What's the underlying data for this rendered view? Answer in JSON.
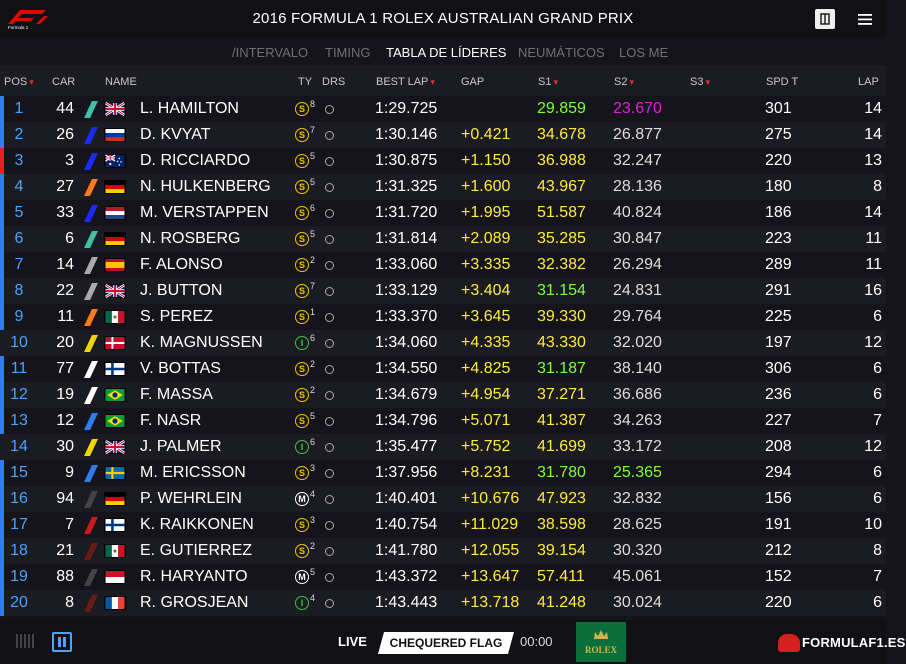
{
  "header": {
    "title": "2016 FORMULA 1 ROLEX AUSTRALIAN GRAND PRIX",
    "logo_text": "Formula 1"
  },
  "tabs": [
    {
      "label": "/INTERVALO",
      "active": false
    },
    {
      "label": "TIMING",
      "active": false
    },
    {
      "label": "TABLA DE LÍDERES",
      "active": true
    },
    {
      "label": "NEUMÁTICOS",
      "active": false
    },
    {
      "label": "LOS ME",
      "active": false
    }
  ],
  "columns": {
    "pos": "POS",
    "car": "CAR",
    "name": "NAME",
    "ty": "TY",
    "drs": "DRS",
    "best_lap": "BEST LAP",
    "gap": "GAP",
    "s1": "S1",
    "s2": "S2",
    "s3": "S3",
    "spd_t": "SPD T",
    "lap": "LAP"
  },
  "rows": [
    {
      "pos": "1",
      "car": "44",
      "team": "#3fc1a8",
      "flag": "gb",
      "name": "L. HAMILTON",
      "tyre": "S",
      "tyre_color": "#f2c400",
      "age": "8",
      "best": "1:29.725",
      "gap": "",
      "s1": "29.859",
      "s1_color": "#7dff3a",
      "s2": "23.670",
      "s2_color": "#e020e0",
      "spd": "301",
      "lap": "14",
      "stripe": "#2e7cf6"
    },
    {
      "pos": "2",
      "car": "26",
      "team": "#1a2bff",
      "flag": "ru",
      "name": "D. KVYAT",
      "tyre": "S",
      "tyre_color": "#f2c400",
      "age": "7",
      "best": "1:30.146",
      "gap": "+0.421",
      "s1": "34.678",
      "s1_color": "#ffeb3b",
      "s2": "26.877",
      "s2_color": "#dddddd",
      "spd": "275",
      "lap": "14",
      "stripe": "#2e7cf6"
    },
    {
      "pos": "3",
      "car": "3",
      "team": "#1a2bff",
      "flag": "au",
      "name": "D. RICCIARDO",
      "tyre": "S",
      "tyre_color": "#f2c400",
      "age": "5",
      "best": "1:30.875",
      "gap": "+1.150",
      "s1": "36.988",
      "s1_color": "#ffeb3b",
      "s2": "32.247",
      "s2_color": "#dddddd",
      "spd": "220",
      "lap": "13",
      "stripe": "#e62020"
    },
    {
      "pos": "4",
      "car": "27",
      "team": "#ff7a1a",
      "flag": "de",
      "name": "N. HULKENBERG",
      "tyre": "S",
      "tyre_color": "#f2c400",
      "age": "5",
      "best": "1:31.325",
      "gap": "+1.600",
      "s1": "43.967",
      "s1_color": "#ffeb3b",
      "s2": "28.136",
      "s2_color": "#dddddd",
      "spd": "180",
      "lap": "8",
      "stripe": "#2e7cf6"
    },
    {
      "pos": "5",
      "car": "33",
      "team": "#1a2bff",
      "flag": "nl",
      "name": "M. VERSTAPPEN",
      "tyre": "S",
      "tyre_color": "#f2c400",
      "age": "6",
      "best": "1:31.720",
      "gap": "+1.995",
      "s1": "51.587",
      "s1_color": "#ffeb3b",
      "s2": "40.824",
      "s2_color": "#dddddd",
      "spd": "186",
      "lap": "14",
      "stripe": "#2e7cf6"
    },
    {
      "pos": "6",
      "car": "6",
      "team": "#3fc1a8",
      "flag": "de",
      "name": "N. ROSBERG",
      "tyre": "S",
      "tyre_color": "#f2c400",
      "age": "5",
      "best": "1:31.814",
      "gap": "+2.089",
      "s1": "35.285",
      "s1_color": "#ffeb3b",
      "s2": "30.847",
      "s2_color": "#dddddd",
      "spd": "223",
      "lap": "11",
      "stripe": "#2e7cf6"
    },
    {
      "pos": "7",
      "car": "14",
      "team": "#aaaaaa",
      "flag": "es",
      "name": "F. ALONSO",
      "tyre": "S",
      "tyre_color": "#f2c400",
      "age": "2",
      "best": "1:33.060",
      "gap": "+3.335",
      "s1": "32.382",
      "s1_color": "#ffeb3b",
      "s2": "26.294",
      "s2_color": "#dddddd",
      "spd": "289",
      "lap": "11",
      "stripe": "#2e7cf6"
    },
    {
      "pos": "8",
      "car": "22",
      "team": "#aaaaaa",
      "flag": "gb",
      "name": "J. BUTTON",
      "tyre": "S",
      "tyre_color": "#f2c400",
      "age": "7",
      "best": "1:33.129",
      "gap": "+3.404",
      "s1": "31.154",
      "s1_color": "#7dff3a",
      "s2": "24.831",
      "s2_color": "#dddddd",
      "spd": "291",
      "lap": "16",
      "stripe": "#2e7cf6"
    },
    {
      "pos": "9",
      "car": "11",
      "team": "#ff7a1a",
      "flag": "mx",
      "name": "S. PEREZ",
      "tyre": "S",
      "tyre_color": "#f2c400",
      "age": "1",
      "best": "1:33.370",
      "gap": "+3.645",
      "s1": "39.330",
      "s1_color": "#ffeb3b",
      "s2": "29.764",
      "s2_color": "#dddddd",
      "spd": "225",
      "lap": "6",
      "stripe": "#2e7cf6"
    },
    {
      "pos": "10",
      "car": "20",
      "team": "#f2d600",
      "flag": "dk",
      "name": "K. MAGNUSSEN",
      "tyre": "I",
      "tyre_color": "#3fc440",
      "age": "6",
      "best": "1:34.060",
      "gap": "+4.335",
      "s1": "43.330",
      "s1_color": "#ffeb3b",
      "s2": "32.020",
      "s2_color": "#dddddd",
      "spd": "197",
      "lap": "12",
      "stripe": ""
    },
    {
      "pos": "11",
      "car": "77",
      "team": "#ffffff",
      "flag": "fi",
      "name": "V. BOTTAS",
      "tyre": "S",
      "tyre_color": "#f2c400",
      "age": "2",
      "best": "1:34.550",
      "gap": "+4.825",
      "s1": "31.187",
      "s1_color": "#7dff3a",
      "s2": "38.140",
      "s2_color": "#dddddd",
      "spd": "306",
      "lap": "6",
      "stripe": "#2e7cf6"
    },
    {
      "pos": "12",
      "car": "19",
      "team": "#ffffff",
      "flag": "br",
      "name": "F. MASSA",
      "tyre": "S",
      "tyre_color": "#f2c400",
      "age": "2",
      "best": "1:34.679",
      "gap": "+4.954",
      "s1": "37.271",
      "s1_color": "#ffeb3b",
      "s2": "36.686",
      "s2_color": "#dddddd",
      "spd": "236",
      "lap": "6",
      "stripe": "#2e7cf6"
    },
    {
      "pos": "13",
      "car": "12",
      "team": "#2e7cf6",
      "flag": "br",
      "name": "F. NASR",
      "tyre": "S",
      "tyre_color": "#f2c400",
      "age": "5",
      "best": "1:34.796",
      "gap": "+5.071",
      "s1": "41.387",
      "s1_color": "#ffeb3b",
      "s2": "34.263",
      "s2_color": "#dddddd",
      "spd": "227",
      "lap": "7",
      "stripe": "#2e7cf6"
    },
    {
      "pos": "14",
      "car": "30",
      "team": "#f2d600",
      "flag": "gb",
      "name": "J. PALMER",
      "tyre": "I",
      "tyre_color": "#3fc440",
      "age": "6",
      "best": "1:35.477",
      "gap": "+5.752",
      "s1": "41.699",
      "s1_color": "#ffeb3b",
      "s2": "33.172",
      "s2_color": "#dddddd",
      "spd": "208",
      "lap": "12",
      "stripe": ""
    },
    {
      "pos": "15",
      "car": "9",
      "team": "#2e7cf6",
      "flag": "se",
      "name": "M. ERICSSON",
      "tyre": "S",
      "tyre_color": "#f2c400",
      "age": "3",
      "best": "1:37.956",
      "gap": "+8.231",
      "s1": "31.780",
      "s1_color": "#7dff3a",
      "s2": "25.365",
      "s2_color": "#7dff3a",
      "spd": "294",
      "lap": "6",
      "stripe": "#2e7cf6"
    },
    {
      "pos": "16",
      "car": "94",
      "team": "#444444",
      "flag": "de",
      "name": "P. WEHRLEIN",
      "tyre": "M",
      "tyre_color": "#ffffff",
      "age": "4",
      "best": "1:40.401",
      "gap": "+10.676",
      "s1": "47.923",
      "s1_color": "#ffeb3b",
      "s2": "32.832",
      "s2_color": "#dddddd",
      "spd": "156",
      "lap": "6",
      "stripe": "#2e7cf6"
    },
    {
      "pos": "17",
      "car": "7",
      "team": "#cc1a1a",
      "flag": "fi",
      "name": "K. RAIKKONEN",
      "tyre": "S",
      "tyre_color": "#f2c400",
      "age": "3",
      "best": "1:40.754",
      "gap": "+11.029",
      "s1": "38.598",
      "s1_color": "#ffeb3b",
      "s2": "28.625",
      "s2_color": "#dddddd",
      "spd": "191",
      "lap": "10",
      "stripe": "#2e7cf6"
    },
    {
      "pos": "18",
      "car": "21",
      "team": "#6b1a1a",
      "flag": "mx",
      "name": "E. GUTIERREZ",
      "tyre": "S",
      "tyre_color": "#f2c400",
      "age": "2",
      "best": "1:41.780",
      "gap": "+12.055",
      "s1": "39.154",
      "s1_color": "#ffeb3b",
      "s2": "30.320",
      "s2_color": "#dddddd",
      "spd": "212",
      "lap": "8",
      "stripe": "#2e7cf6"
    },
    {
      "pos": "19",
      "car": "88",
      "team": "#444444",
      "flag": "id",
      "name": "R. HARYANTO",
      "tyre": "M",
      "tyre_color": "#ffffff",
      "age": "5",
      "best": "1:43.372",
      "gap": "+13.647",
      "s1": "57.411",
      "s1_color": "#ffeb3b",
      "s2": "45.061",
      "s2_color": "#dddddd",
      "spd": "152",
      "lap": "7",
      "stripe": "#2e7cf6"
    },
    {
      "pos": "20",
      "car": "8",
      "team": "#6b1a1a",
      "flag": "fr",
      "name": "R. GROSJEAN",
      "tyre": "I",
      "tyre_color": "#3fc440",
      "age": "4",
      "best": "1:43.443",
      "gap": "+13.718",
      "s1": "41.248",
      "s1_color": "#ffeb3b",
      "s2": "30.024",
      "s2_color": "#dddddd",
      "spd": "220",
      "lap": "6",
      "stripe": "#2e7cf6"
    }
  ],
  "footer": {
    "live": "LIVE",
    "flag_status": "CHEQUERED FLAG",
    "clock": "00:00",
    "sponsor": "ROLEX",
    "watermark": "FORMULAF1.ES"
  },
  "colors": {
    "accent_blue": "#4aa3ff",
    "gap_yellow": "#ffeb3b",
    "purple": "#e020e0",
    "green": "#7dff3a",
    "sort_red": "#e0303a"
  }
}
